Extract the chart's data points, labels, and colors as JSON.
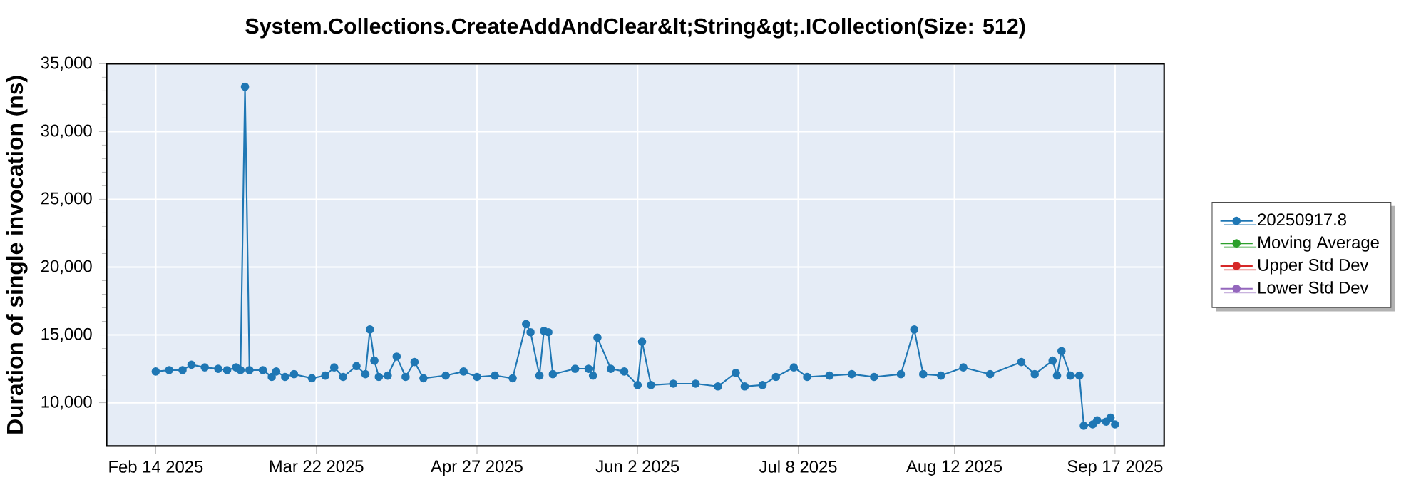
{
  "chart_data": {
    "type": "line",
    "title": "System.Collections.CreateAddAndClear&lt;String&gt;.ICollection(Size: 512)",
    "ylabel": "Duration of single invocation (ns)",
    "xlim": [
      "2025-02-03",
      "2025-09-28"
    ],
    "ylim": [
      6800,
      35000
    ],
    "xticks": [
      {
        "value": "2025-02-14",
        "label": "Feb 14 2025"
      },
      {
        "value": "2025-03-22",
        "label": "Mar 22 2025"
      },
      {
        "value": "2025-04-27",
        "label": "Apr 27 2025"
      },
      {
        "value": "2025-06-02",
        "label": "Jun 2 2025"
      },
      {
        "value": "2025-07-08",
        "label": "Jul 8 2025"
      },
      {
        "value": "2025-08-12",
        "label": "Aug 12 2025"
      },
      {
        "value": "2025-09-17",
        "label": "Sep 17 2025"
      }
    ],
    "yticks": [
      {
        "value": 10000,
        "label": "10,000"
      },
      {
        "value": 15000,
        "label": "15,000"
      },
      {
        "value": 20000,
        "label": "20,000"
      },
      {
        "value": 25000,
        "label": "25,000"
      },
      {
        "value": 30000,
        "label": "30,000"
      },
      {
        "value": 35000,
        "label": "35,000"
      }
    ],
    "grid": true,
    "legend": "right",
    "marker": "circle",
    "line_style": "solid",
    "series": [
      {
        "name": "20250917.8",
        "color": "#1f77b4",
        "x": [
          "2025-02-14",
          "2025-02-17",
          "2025-02-20",
          "2025-02-22",
          "2025-02-25",
          "2025-02-28",
          "2025-03-02",
          "2025-03-04",
          "2025-03-05",
          "2025-03-06",
          "2025-03-07",
          "2025-03-10",
          "2025-03-12",
          "2025-03-13",
          "2025-03-15",
          "2025-03-17",
          "2025-03-21",
          "2025-03-24",
          "2025-03-26",
          "2025-03-28",
          "2025-03-31",
          "2025-04-02",
          "2025-04-03",
          "2025-04-04",
          "2025-04-05",
          "2025-04-07",
          "2025-04-09",
          "2025-04-11",
          "2025-04-13",
          "2025-04-15",
          "2025-04-20",
          "2025-04-24",
          "2025-04-27",
          "2025-05-01",
          "2025-05-05",
          "2025-05-08",
          "2025-05-09",
          "2025-05-11",
          "2025-05-12",
          "2025-05-13",
          "2025-05-14",
          "2025-05-19",
          "2025-05-22",
          "2025-05-23",
          "2025-05-24",
          "2025-05-27",
          "2025-05-30",
          "2025-06-02",
          "2025-06-03",
          "2025-06-05",
          "2025-06-10",
          "2025-06-15",
          "2025-06-20",
          "2025-06-24",
          "2025-06-26",
          "2025-06-30",
          "2025-07-03",
          "2025-07-07",
          "2025-07-10",
          "2025-07-15",
          "2025-07-20",
          "2025-07-25",
          "2025-07-31",
          "2025-08-03",
          "2025-08-05",
          "2025-08-09",
          "2025-08-14",
          "2025-08-20",
          "2025-08-27",
          "2025-08-30",
          "2025-09-03",
          "2025-09-04",
          "2025-09-05",
          "2025-09-07",
          "2025-09-09",
          "2025-09-10",
          "2025-09-12",
          "2025-09-13",
          "2025-09-15",
          "2025-09-16",
          "2025-09-17"
        ],
        "values": [
          12300,
          12400,
          12400,
          12800,
          12600,
          12500,
          12400,
          12600,
          12400,
          33300,
          12400,
          12400,
          11900,
          12300,
          11900,
          12100,
          11800,
          12000,
          12600,
          11900,
          12700,
          12100,
          15400,
          13100,
          11900,
          12000,
          13400,
          11900,
          13000,
          11800,
          12000,
          12300,
          11900,
          12000,
          11800,
          15800,
          15200,
          12000,
          15300,
          15200,
          12100,
          12500,
          12500,
          12000,
          14800,
          12500,
          12300,
          11300,
          14500,
          11300,
          11400,
          11400,
          11200,
          12200,
          11200,
          11300,
          11900,
          12600,
          11900,
          12000,
          12100,
          11900,
          12100,
          15400,
          12100,
          12000,
          12600,
          12100,
          13000,
          12100,
          13100,
          12000,
          13800,
          12000,
          12000,
          8300,
          8400,
          8700,
          8600,
          8900,
          8400
        ]
      },
      {
        "name": "Moving Average",
        "color": "#2ca02c"
      },
      {
        "name": "Upper Std Dev",
        "color": "#d62728"
      },
      {
        "name": "Lower Std Dev",
        "color": "#9467bd"
      }
    ]
  }
}
